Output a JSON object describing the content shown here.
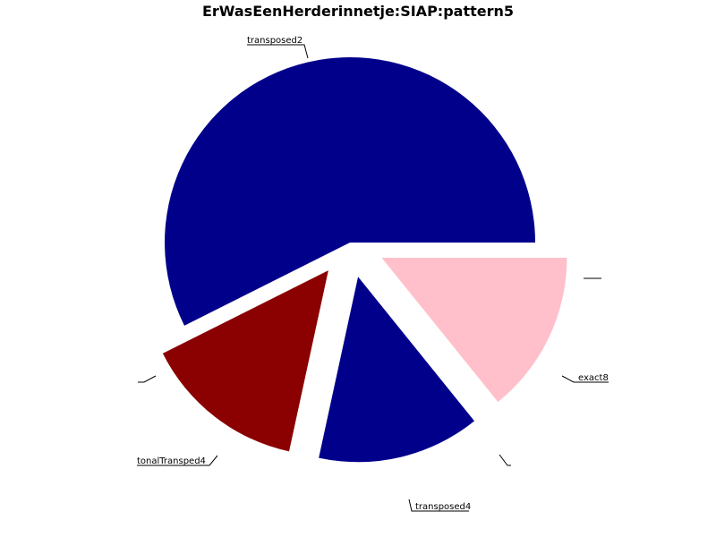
{
  "chart_data": {
    "type": "pie",
    "title": "ErWasEenHerderinnetje:SIAP:pattern5",
    "slices": [
      {
        "label": "transposed2",
        "value": 57.4,
        "color": "#00008b"
      },
      {
        "label": "",
        "value": 0,
        "color": "#00008b"
      },
      {
        "label": "tonalTransped4",
        "value": 14.2,
        "color": "#8b0000"
      },
      {
        "label": "transposed4",
        "value": 14.2,
        "color": "#00008b"
      },
      {
        "label": "",
        "value": 0,
        "color": "#00008b"
      },
      {
        "label": "exact8",
        "value": 14.2,
        "color": "#ffc0cb"
      },
      {
        "label": "",
        "value": 0,
        "color": "#00008b"
      }
    ]
  }
}
